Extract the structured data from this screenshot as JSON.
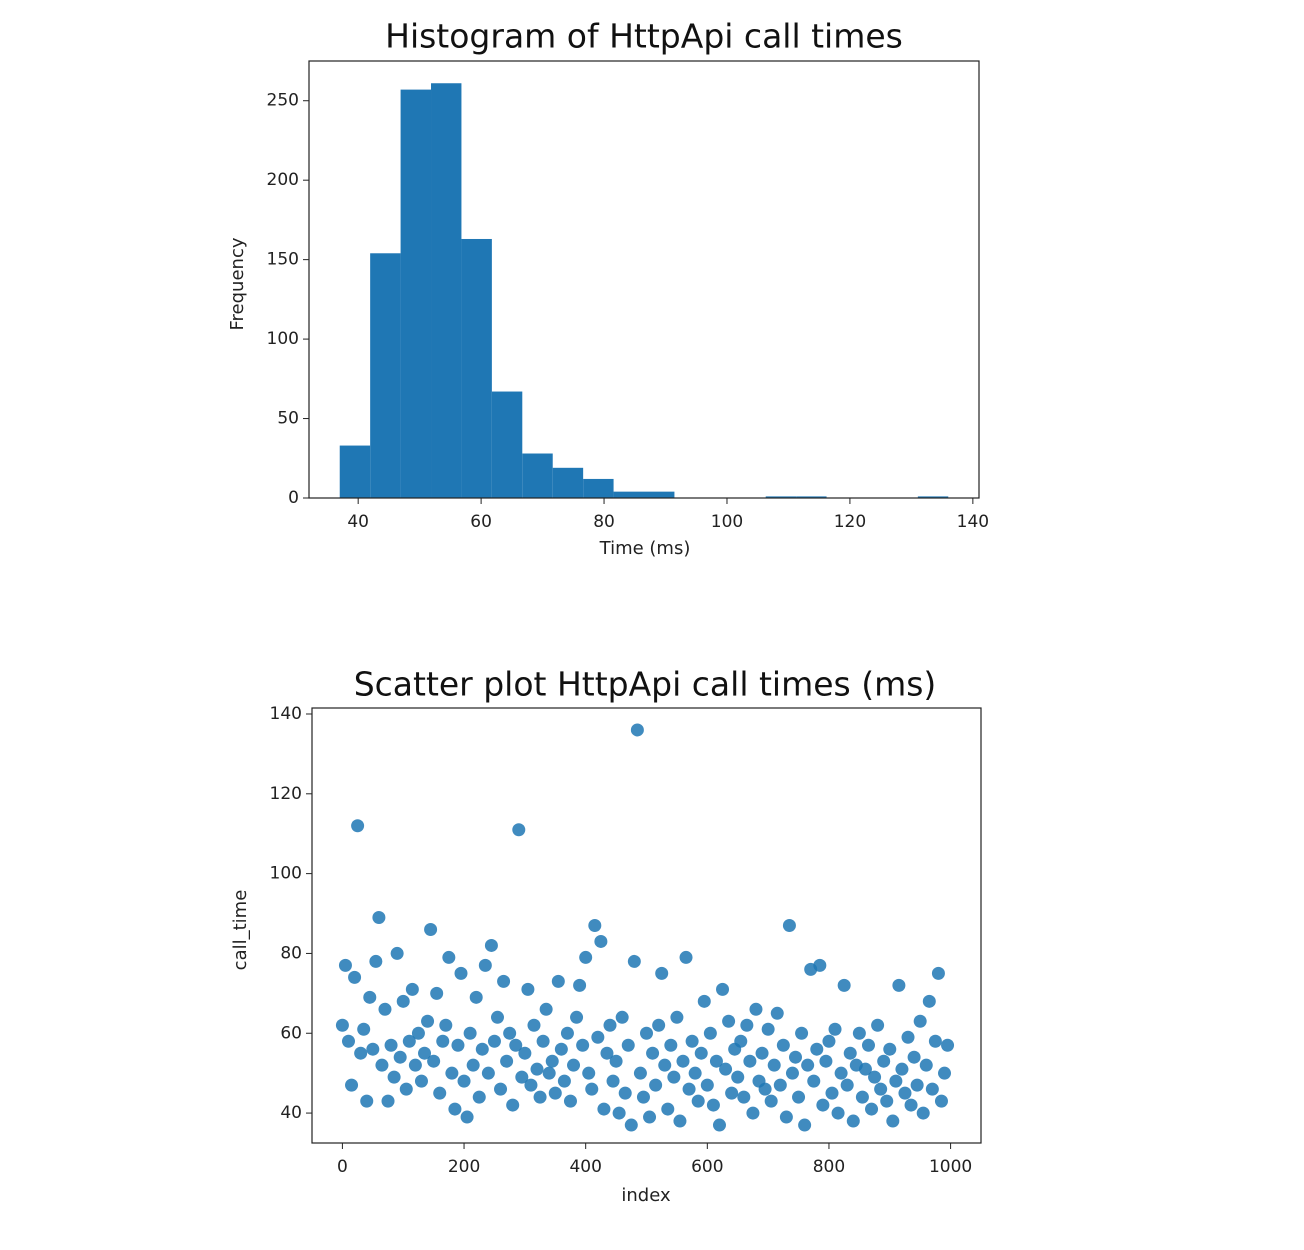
{
  "chart_data": [
    {
      "type": "histogram",
      "title": "Histogram of HttpApi call times",
      "xlabel": "Time (ms)",
      "ylabel": "Frequency",
      "color": "#1f77b4",
      "bins": [
        37,
        41.95,
        46.9,
        51.85,
        56.8,
        61.75,
        66.7,
        71.65,
        76.6,
        81.55,
        86.5,
        91.45,
        96.4,
        101.35,
        106.3,
        111.25,
        116.2,
        121.15,
        126.1,
        131.05,
        136
      ],
      "counts": [
        33,
        154,
        257,
        261,
        163,
        67,
        28,
        19,
        12,
        4,
        4,
        0,
        0,
        0,
        1,
        1,
        0,
        0,
        0,
        1
      ],
      "xlim": [
        32,
        141
      ],
      "xticks": [
        40,
        60,
        80,
        100,
        120,
        140
      ],
      "ylim": [
        0,
        275
      ],
      "yticks": [
        0,
        50,
        100,
        150,
        200,
        250
      ]
    },
    {
      "type": "scatter",
      "title": "Scatter plot HttpApi call times (ms)",
      "xlabel": "index",
      "ylabel": "call_time",
      "color": "#1f77b4",
      "x": [
        0,
        5,
        10,
        15,
        20,
        25,
        30,
        35,
        40,
        45,
        50,
        55,
        60,
        65,
        70,
        75,
        80,
        85,
        90,
        95,
        100,
        105,
        110,
        115,
        120,
        125,
        130,
        135,
        140,
        145,
        150,
        155,
        160,
        165,
        170,
        175,
        180,
        185,
        190,
        195,
        200,
        205,
        210,
        215,
        220,
        225,
        230,
        235,
        240,
        245,
        250,
        255,
        260,
        265,
        270,
        275,
        280,
        285,
        290,
        295,
        300,
        305,
        310,
        315,
        320,
        325,
        330,
        335,
        340,
        345,
        350,
        355,
        360,
        365,
        370,
        375,
        380,
        385,
        390,
        395,
        400,
        405,
        410,
        415,
        420,
        425,
        430,
        435,
        440,
        445,
        450,
        455,
        460,
        465,
        470,
        475,
        480,
        485,
        490,
        495,
        500,
        505,
        510,
        515,
        520,
        525,
        530,
        535,
        540,
        545,
        550,
        555,
        560,
        565,
        570,
        575,
        580,
        585,
        590,
        595,
        600,
        605,
        610,
        615,
        620,
        625,
        630,
        635,
        640,
        645,
        650,
        655,
        660,
        665,
        670,
        675,
        680,
        685,
        690,
        695,
        700,
        705,
        710,
        715,
        720,
        725,
        730,
        735,
        740,
        745,
        750,
        755,
        760,
        765,
        770,
        775,
        780,
        785,
        790,
        795,
        800,
        805,
        810,
        815,
        820,
        825,
        830,
        835,
        840,
        845,
        850,
        855,
        860,
        865,
        870,
        875,
        880,
        885,
        890,
        895,
        900,
        905,
        910,
        915,
        920,
        925,
        930,
        935,
        940,
        945,
        950,
        955,
        960,
        965,
        970,
        975,
        980,
        985,
        990,
        995
      ],
      "values": [
        62,
        77,
        58,
        47,
        74,
        112,
        55,
        61,
        43,
        69,
        56,
        78,
        89,
        52,
        66,
        43,
        57,
        49,
        80,
        54,
        68,
        46,
        58,
        71,
        52,
        60,
        48,
        55,
        63,
        86,
        53,
        70,
        45,
        58,
        62,
        79,
        50,
        41,
        57,
        75,
        48,
        39,
        60,
        52,
        69,
        44,
        56,
        77,
        50,
        82,
        58,
        64,
        46,
        73,
        53,
        60,
        42,
        57,
        111,
        49,
        55,
        71,
        47,
        62,
        51,
        44,
        58,
        66,
        50,
        53,
        45,
        73,
        56,
        48,
        60,
        43,
        52,
        64,
        72,
        57,
        79,
        50,
        46,
        87,
        59,
        83,
        41,
        55,
        62,
        48,
        53,
        40,
        64,
        45,
        57,
        37,
        78,
        136,
        50,
        44,
        60,
        39,
        55,
        47,
        62,
        75,
        52,
        41,
        57,
        49,
        64,
        38,
        53,
        79,
        46,
        58,
        50,
        43,
        55,
        68,
        47,
        60,
        42,
        53,
        37,
        71,
        51,
        63,
        45,
        56,
        49,
        58,
        44,
        62,
        53,
        40,
        66,
        48,
        55,
        46,
        61,
        43,
        52,
        65,
        47,
        57,
        39,
        87,
        50,
        54,
        44,
        60,
        37,
        52,
        76,
        48,
        56,
        77,
        42,
        53,
        58,
        45,
        61,
        40,
        50,
        72,
        47,
        55,
        38,
        52,
        60,
        44,
        51,
        57,
        41,
        49,
        62,
        46,
        53,
        43,
        56,
        38,
        48,
        72,
        51,
        45,
        59,
        42,
        54,
        47,
        63,
        40,
        52,
        68,
        46,
        58,
        75,
        43,
        50,
        57
      ],
      "xlim": [
        -50,
        1050
      ],
      "xticks": [
        0,
        200,
        400,
        600,
        800,
        1000
      ],
      "ylim": [
        32.5,
        141.5
      ],
      "yticks": [
        40,
        60,
        80,
        100,
        120,
        140
      ]
    }
  ]
}
